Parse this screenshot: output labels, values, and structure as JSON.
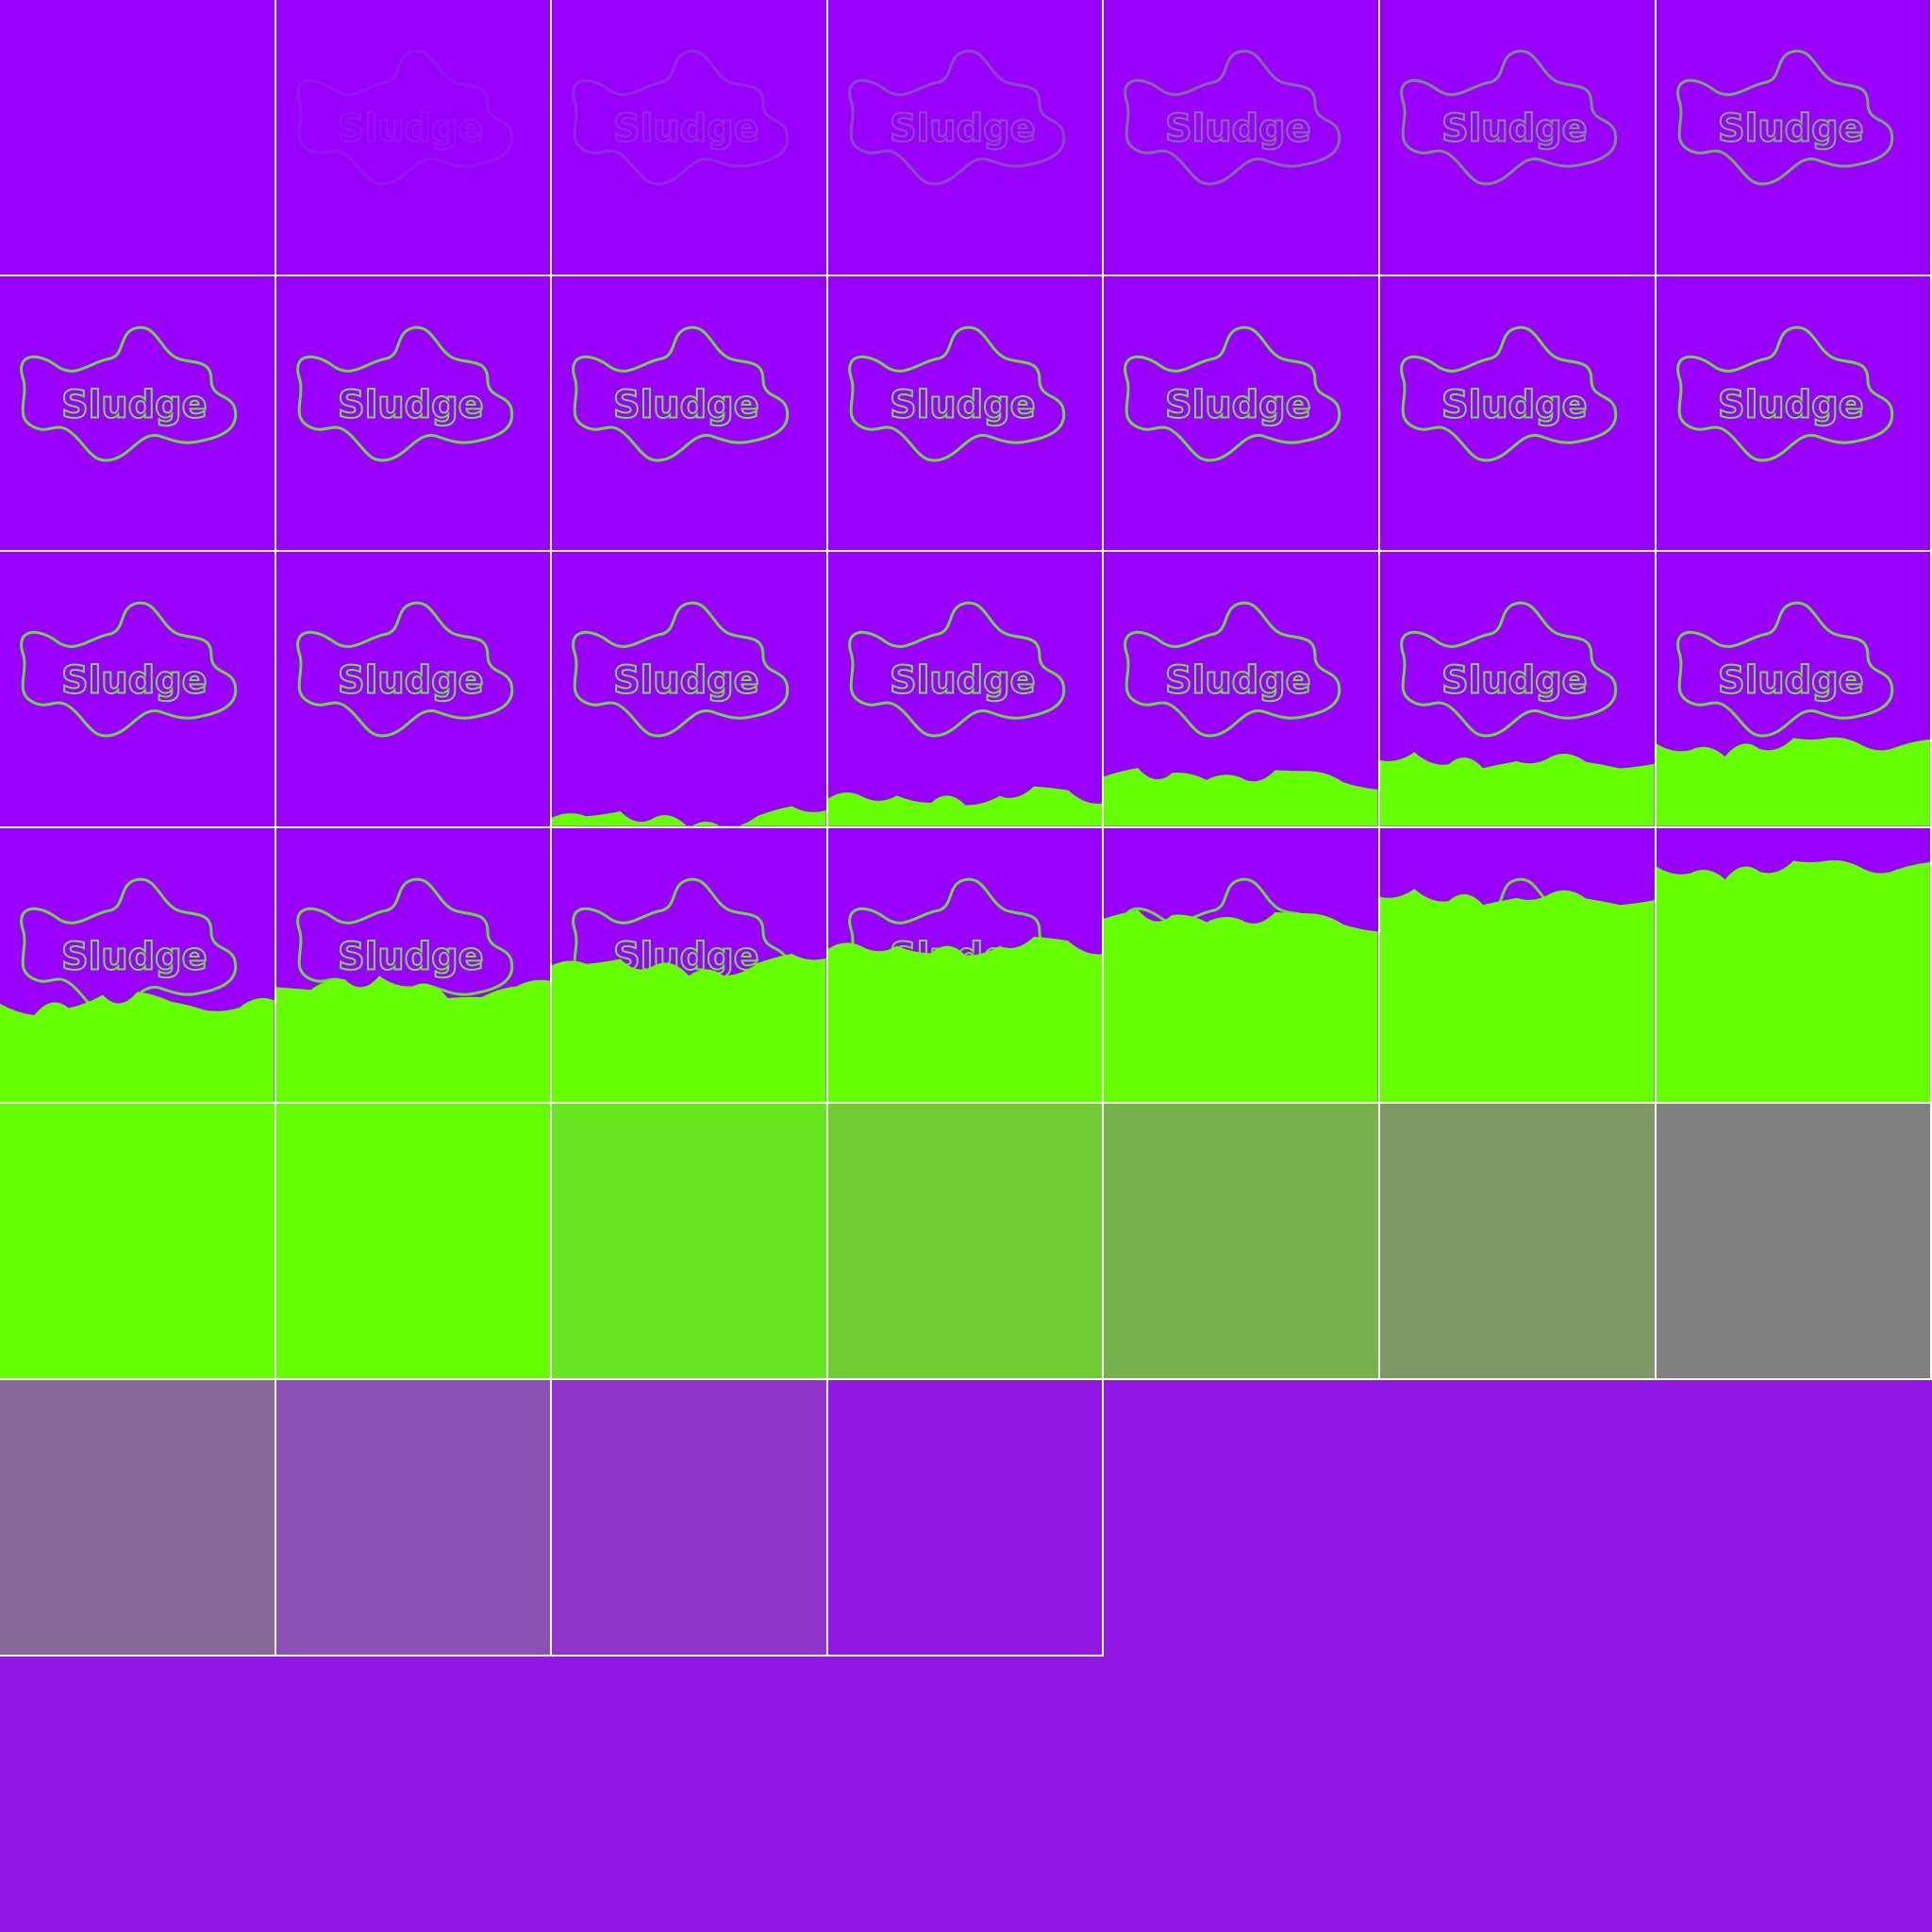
{
  "sheet": {
    "background": "#9218e6",
    "grid_line_color": "#ffffff",
    "frame_count": 39
  },
  "logo": {
    "text": "Sludge",
    "outline_color": "#66dd33",
    "text_color": "#77dd44"
  },
  "colors": {
    "purple": "#9900ff",
    "slime_green": "#66ff00",
    "fade_sequence": [
      "#66e620",
      "#6fcc33",
      "#76b34d",
      "#7f9966",
      "#808080",
      "#886a99",
      "#8c4fb3",
      "#9034cc",
      "#9418e3"
    ]
  },
  "frames": [
    {
      "bg": "#9900ff",
      "logo_opacity": 0.0,
      "slime": 0
    },
    {
      "bg": "#9900ff",
      "logo_opacity": 0.1,
      "slime": 0
    },
    {
      "bg": "#9900ff",
      "logo_opacity": 0.2,
      "slime": 0
    },
    {
      "bg": "#9900ff",
      "logo_opacity": 0.35,
      "slime": 0
    },
    {
      "bg": "#9900ff",
      "logo_opacity": 0.5,
      "slime": 0
    },
    {
      "bg": "#9900ff",
      "logo_opacity": 0.65,
      "slime": 0
    },
    {
      "bg": "#9900ff",
      "logo_opacity": 0.8,
      "slime": 0
    },
    {
      "bg": "#9900ff",
      "logo_opacity": 1.0,
      "slime": 0
    },
    {
      "bg": "#9900ff",
      "logo_opacity": 1.0,
      "slime": 0
    },
    {
      "bg": "#9900ff",
      "logo_opacity": 1.0,
      "slime": 0
    },
    {
      "bg": "#9900ff",
      "logo_opacity": 1.0,
      "slime": 0
    },
    {
      "bg": "#9900ff",
      "logo_opacity": 1.0,
      "slime": 0
    },
    {
      "bg": "#9900ff",
      "logo_opacity": 1.0,
      "slime": 0
    },
    {
      "bg": "#9900ff",
      "logo_opacity": 1.0,
      "slime": 0
    },
    {
      "bg": "#9900ff",
      "logo_opacity": 1.0,
      "slime": 0
    },
    {
      "bg": "#9900ff",
      "logo_opacity": 1.0,
      "slime": 0
    },
    {
      "bg": "#9900ff",
      "logo_opacity": 1.0,
      "slime": 0.03
    },
    {
      "bg": "#9900ff",
      "logo_opacity": 1.0,
      "slime": 0.1
    },
    {
      "bg": "#9900ff",
      "logo_opacity": 1.0,
      "slime": 0.18
    },
    {
      "bg": "#9900ff",
      "logo_opacity": 1.0,
      "slime": 0.24
    },
    {
      "bg": "#9900ff",
      "logo_opacity": 1.0,
      "slime": 0.3
    },
    {
      "bg": "#9900ff",
      "logo_opacity": 1.0,
      "slime": 0.36
    },
    {
      "bg": "#9900ff",
      "logo_opacity": 1.0,
      "slime": 0.42
    },
    {
      "bg": "#9900ff",
      "logo_opacity": 1.0,
      "slime": 0.5
    },
    {
      "bg": "#9900ff",
      "logo_opacity": 1.0,
      "slime": 0.56
    },
    {
      "bg": "#9900ff",
      "logo_opacity": 1.0,
      "slime": 0.67
    },
    {
      "bg": "#9900ff",
      "logo_opacity": 1.0,
      "slime": 0.75
    },
    {
      "bg": "#9900ff",
      "logo_opacity": 1.0,
      "slime": 0.86
    },
    {
      "bg": "#66ff00",
      "logo_opacity": 0,
      "slime": 0.97
    },
    {
      "bg": "#66ff00",
      "logo_opacity": 0,
      "slime": 1
    },
    {
      "bg": "#66e620",
      "logo_opacity": 0,
      "slime": 1
    },
    {
      "bg": "#6fcc33",
      "logo_opacity": 0,
      "slime": 1
    },
    {
      "bg": "#76b34d",
      "logo_opacity": 0,
      "slime": 1
    },
    {
      "bg": "#7f9966",
      "logo_opacity": 0,
      "slime": 1
    },
    {
      "bg": "#808080",
      "logo_opacity": 0,
      "slime": 1
    },
    {
      "bg": "#886a99",
      "logo_opacity": 0,
      "slime": 1
    },
    {
      "bg": "#8c4fb3",
      "logo_opacity": 0,
      "slime": 1
    },
    {
      "bg": "#9034cc",
      "logo_opacity": 0,
      "slime": 1
    },
    {
      "bg": "#9418e3",
      "logo_opacity": 0,
      "slime": 1
    }
  ]
}
